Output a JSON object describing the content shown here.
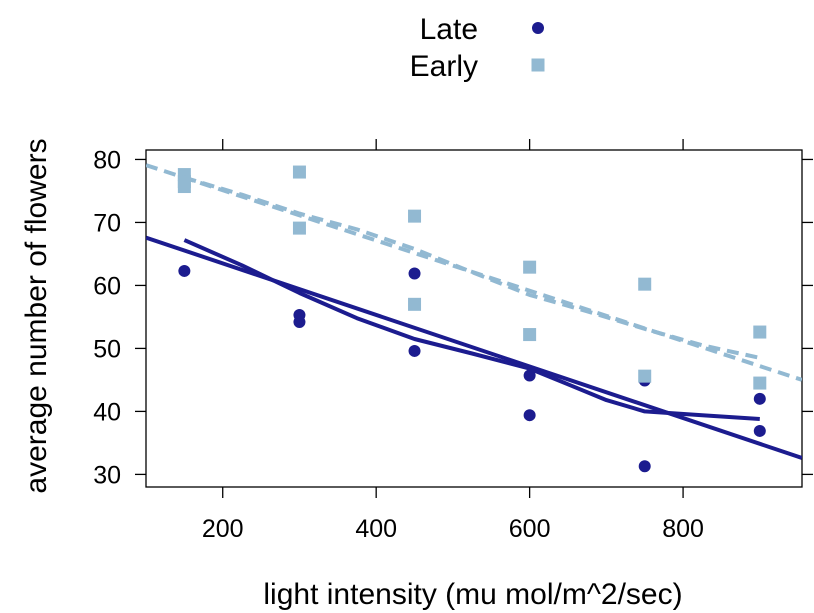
{
  "chart_data": {
    "type": "scatter",
    "xlabel": "light intensity (mu mol/m^2/sec)",
    "ylabel": "average number of flowers",
    "xlim": [
      100,
      955
    ],
    "ylim": [
      28,
      81.5
    ],
    "xticks": [
      200,
      400,
      600,
      800
    ],
    "yticks": [
      30,
      40,
      50,
      60,
      70,
      80
    ],
    "legend_position": "top-center",
    "series": [
      {
        "name": "Late",
        "marker": "circle",
        "color": "#1c1c8f",
        "line_style": "solid",
        "points": [
          [
            150,
            62.3
          ],
          [
            300,
            55.3
          ],
          [
            300,
            54.2
          ],
          [
            450,
            61.9
          ],
          [
            450,
            49.6
          ],
          [
            600,
            45.7
          ],
          [
            600,
            39.4
          ],
          [
            750,
            44.9
          ],
          [
            750,
            31.3
          ],
          [
            900,
            42.0
          ],
          [
            900,
            36.9
          ]
        ],
        "fit_line": [
          [
            100,
            67.6
          ],
          [
            955,
            32.6
          ]
        ],
        "smooth_curve": [
          [
            150,
            67.2
          ],
          [
            225,
            63.2
          ],
          [
            300,
            58.8
          ],
          [
            375,
            54.8
          ],
          [
            450,
            51.5
          ],
          [
            525,
            49.2
          ],
          [
            600,
            46.8
          ],
          [
            650,
            44.3
          ],
          [
            700,
            41.8
          ],
          [
            750,
            40.0
          ],
          [
            825,
            39.4
          ],
          [
            900,
            38.8
          ]
        ]
      },
      {
        "name": "Early",
        "marker": "square",
        "color": "#92b9d2",
        "line_style": "dashed",
        "points": [
          [
            150,
            77.6
          ],
          [
            150,
            76.5
          ],
          [
            150,
            75.7
          ],
          [
            300,
            78.0
          ],
          [
            300,
            69.1
          ],
          [
            450,
            71.0
          ],
          [
            450,
            57.0
          ],
          [
            600,
            62.9
          ],
          [
            600,
            52.2
          ],
          [
            750,
            60.2
          ],
          [
            750,
            45.6
          ],
          [
            900,
            52.6
          ],
          [
            900,
            44.5
          ]
        ],
        "fit_line": [
          [
            100,
            79.1
          ],
          [
            955,
            45.0
          ]
        ],
        "smooth_curve": [
          [
            150,
            77.1
          ],
          [
            225,
            74.4
          ],
          [
            300,
            71.4
          ],
          [
            375,
            68.9
          ],
          [
            450,
            65.8
          ],
          [
            525,
            62.1
          ],
          [
            600,
            58.5
          ],
          [
            675,
            55.9
          ],
          [
            750,
            53.1
          ],
          [
            825,
            50.5
          ],
          [
            900,
            48.5
          ]
        ]
      }
    ]
  }
}
